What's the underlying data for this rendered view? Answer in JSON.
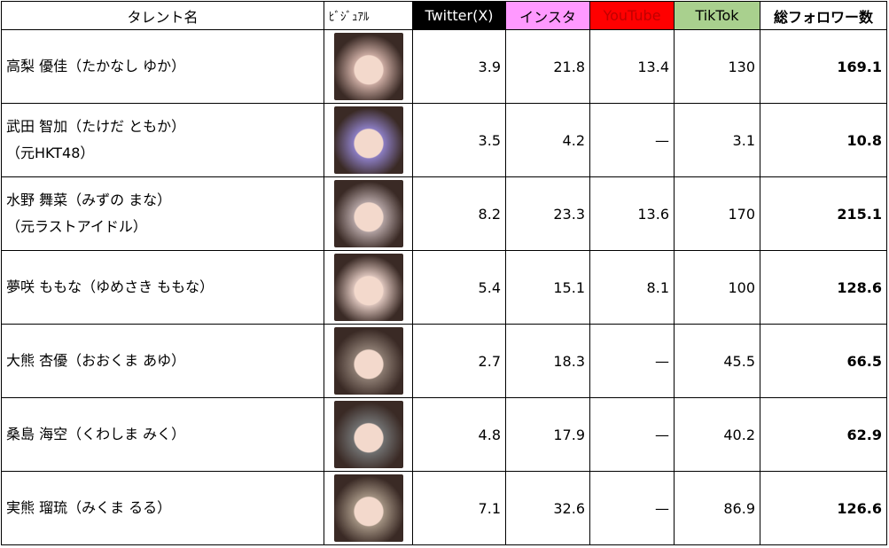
{
  "headers": {
    "name": "タレント名",
    "visual": "ﾋﾞｼﾞｭｱﾙ",
    "twitter": "Twitter(X)",
    "insta": "インスタ",
    "youtube": "YouTube",
    "tiktok": "TikTok",
    "total": "総フォロワー数"
  },
  "colors": {
    "twitter_bg": "#000000",
    "twitter_fg": "#ffffff",
    "insta_bg": "#ff99ff",
    "youtube_bg": "#ff0000",
    "youtube_fg": "#c00000",
    "tiktok_bg": "#a9d08e"
  },
  "rows": [
    {
      "name1": "高梨 優佳（たかなし ゆか）",
      "name2": "",
      "twitter": "3.9",
      "insta": "21.8",
      "youtube": "13.4",
      "tiktok": "130",
      "total": "169.1"
    },
    {
      "name1": "武田 智加（たけだ ともか）",
      "name2": "（元HKT48）",
      "twitter": "3.5",
      "insta": "4.2",
      "youtube": "—",
      "tiktok": "3.1",
      "total": "10.8"
    },
    {
      "name1": "水野 舞菜（みずの まな）",
      "name2": "（元ラストアイドル）",
      "twitter": "8.2",
      "insta": "23.3",
      "youtube": "13.6",
      "tiktok": "170",
      "total": "215.1"
    },
    {
      "name1": "夢咲 ももな（ゆめさき ももな）",
      "name2": "",
      "twitter": "5.4",
      "insta": "15.1",
      "youtube": "8.1",
      "tiktok": "100",
      "total": "128.6"
    },
    {
      "name1": "大熊 杏優（おおくま あゆ）",
      "name2": "",
      "twitter": "2.7",
      "insta": "18.3",
      "youtube": "—",
      "tiktok": "45.5",
      "total": "66.5"
    },
    {
      "name1": "桑島 海空（くわしま みく）",
      "name2": "",
      "twitter": "4.8",
      "insta": "17.9",
      "youtube": "—",
      "tiktok": "40.2",
      "total": "62.9"
    },
    {
      "name1": "実熊 瑠琉（みくま るる）",
      "name2": "",
      "twitter": "7.1",
      "insta": "32.6",
      "youtube": "—",
      "tiktok": "86.9",
      "total": "126.6"
    }
  ]
}
